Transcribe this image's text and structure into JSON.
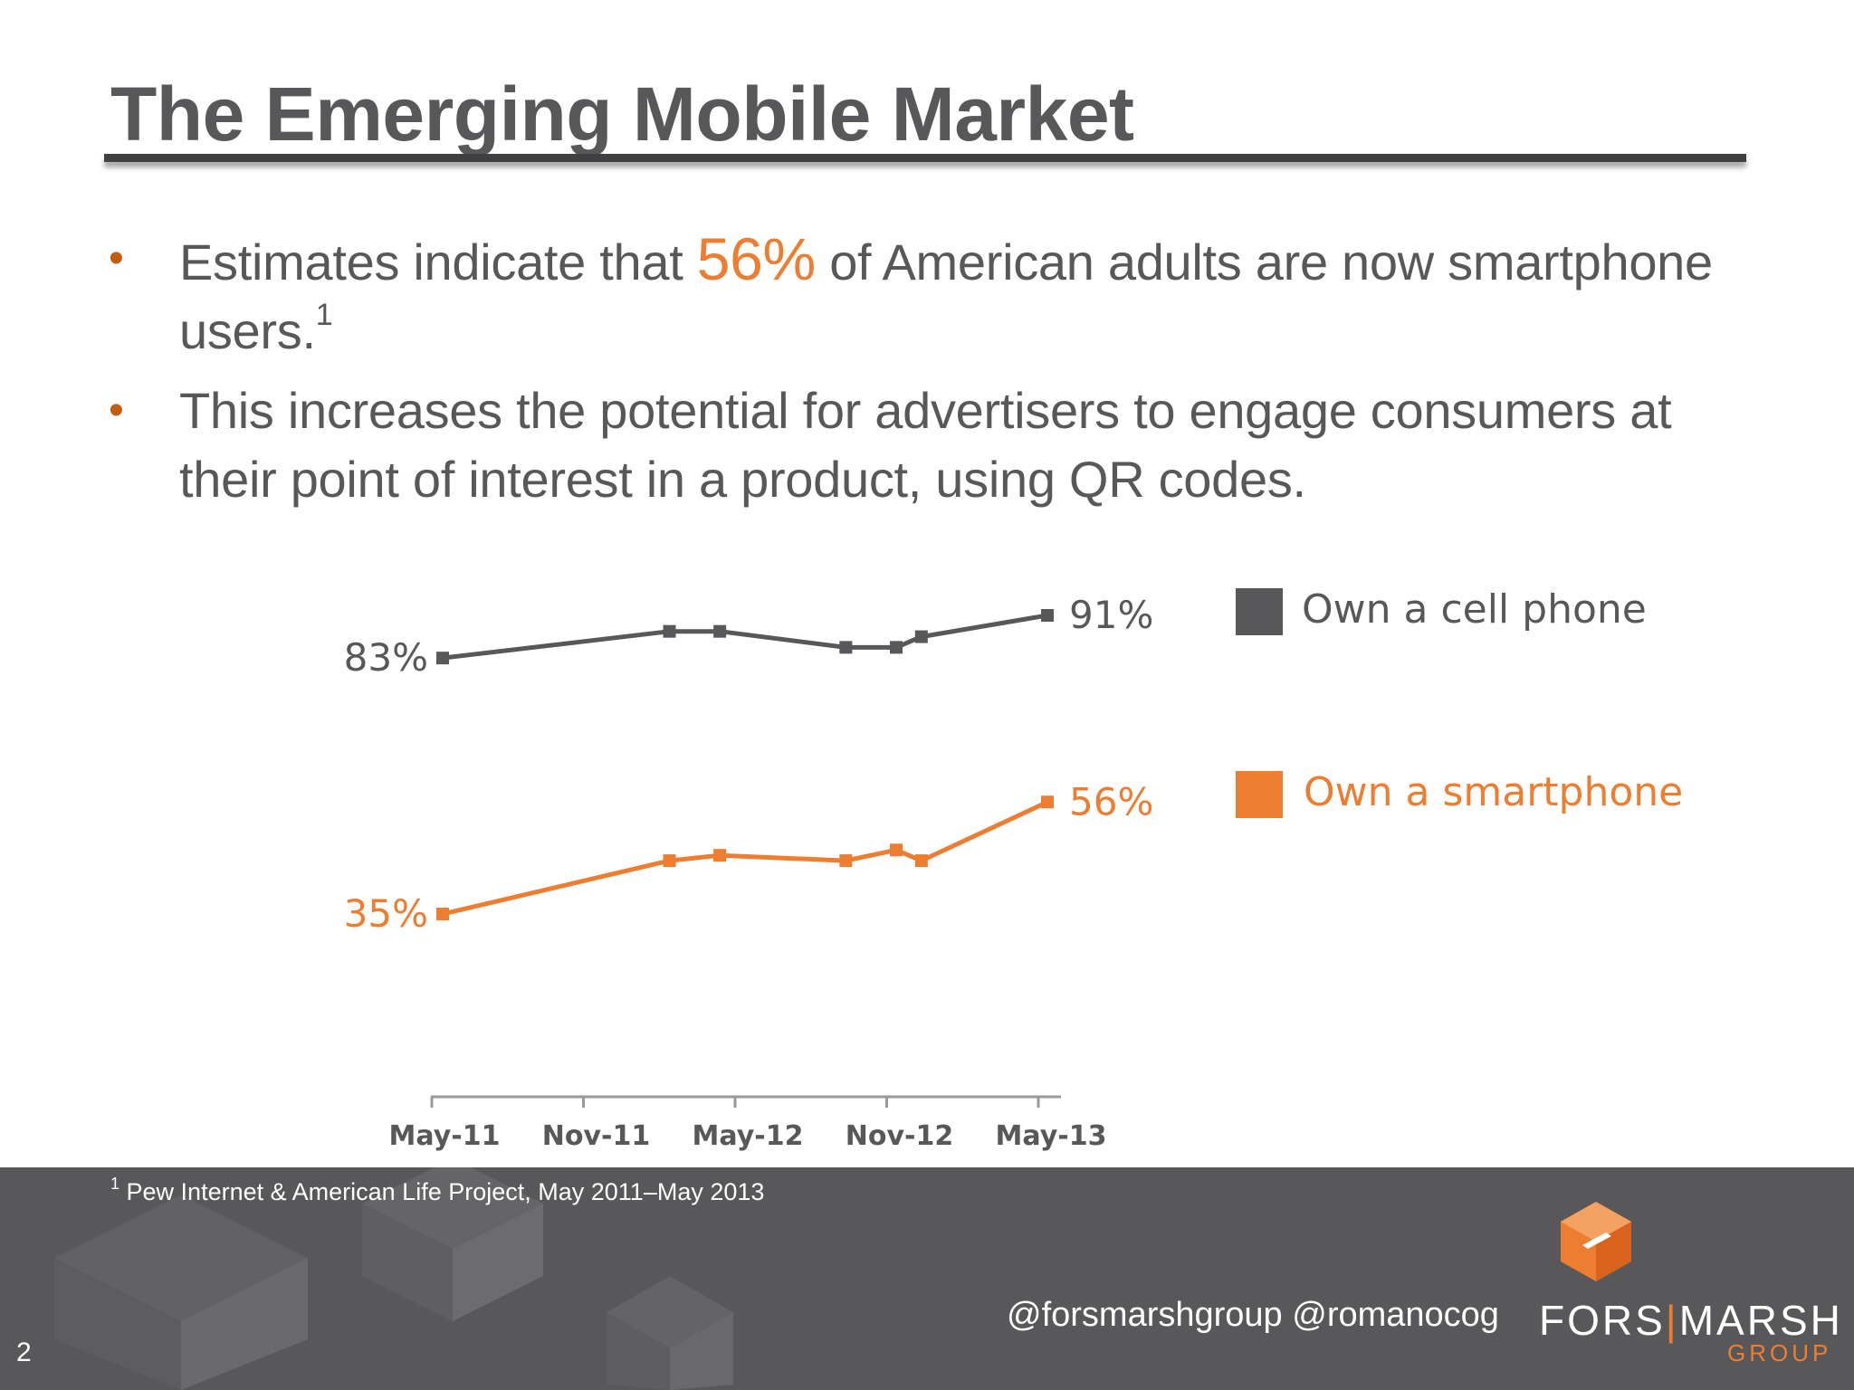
{
  "slide": {
    "title": "The Emerging Mobile Market",
    "page_number": "2"
  },
  "bullets": [
    {
      "text_before": "Estimates indicate that ",
      "highlight": "56%",
      "text_after": " of American adults are now smartphone users.",
      "superscript": "1"
    },
    {
      "text": "This increases the potential for advertisers to engage consumers at their point of interest in a product, using QR codes."
    }
  ],
  "colors": {
    "text": "#58585a",
    "accent": "#ed7d31",
    "cell_series": "#58585a",
    "footer_bg": "#58585a"
  },
  "chart_data": {
    "type": "line",
    "title": "",
    "xlabel": "",
    "ylabel": "",
    "x_ticks": [
      "May-11",
      "Nov-11",
      "May-12",
      "Nov-12",
      "May-13"
    ],
    "x_range": [
      "2011-05",
      "2013-05"
    ],
    "ylim": [
      0,
      100
    ],
    "grid": false,
    "legend_position": "right",
    "series": [
      {
        "name": "Own a cell phone",
        "color": "#58585a",
        "x": [
          "2011-05",
          "2012-02",
          "2012-04",
          "2012-09",
          "2012-11",
          "2012-12",
          "2013-05"
        ],
        "values": [
          83,
          88,
          88,
          85,
          85,
          87,
          91
        ],
        "first_label": "83%",
        "last_label": "91%"
      },
      {
        "name": "Own a smartphone",
        "color": "#ed7d31",
        "x": [
          "2011-05",
          "2012-02",
          "2012-04",
          "2012-09",
          "2012-11",
          "2012-12",
          "2013-05"
        ],
        "values": [
          35,
          45,
          46,
          45,
          47,
          45,
          56
        ],
        "first_label": "35%",
        "last_label": "56%"
      }
    ]
  },
  "footer": {
    "footnote_number": "1",
    "footnote": "Pew Internet & American Life Project, May 2011–May 2013",
    "handles": "@forsmarshgroup @romanocog",
    "logo_left": "FORS",
    "logo_separator": "|",
    "logo_right": "MARSH",
    "logo_sub": "GROUP"
  }
}
